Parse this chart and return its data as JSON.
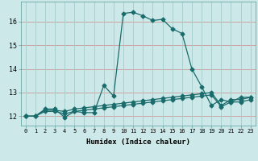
{
  "xlabel": "Humidex (Indice chaleur)",
  "ylabel": "",
  "bg_color": "#cce8e8",
  "grid_color": "#aacfcf",
  "red_line_color": "#cc9999",
  "line_color": "#1a6b6b",
  "x_ticks": [
    0,
    1,
    2,
    3,
    4,
    5,
    6,
    7,
    8,
    9,
    10,
    11,
    12,
    13,
    14,
    15,
    16,
    17,
    18,
    19,
    20,
    21,
    22,
    23
  ],
  "y_ticks": [
    12,
    13,
    14,
    15,
    16
  ],
  "xlim": [
    -0.5,
    23.5
  ],
  "ylim": [
    11.6,
    16.85
  ],
  "line1_x": [
    0,
    1,
    2,
    3,
    4,
    5,
    6,
    7,
    8,
    9,
    10,
    11,
    12,
    13,
    14,
    15,
    16,
    17,
    18,
    19,
    20,
    21,
    22,
    23
  ],
  "line1_y": [
    12.0,
    12.0,
    12.3,
    12.3,
    11.95,
    12.2,
    12.15,
    12.15,
    13.3,
    12.85,
    16.35,
    16.4,
    16.25,
    16.05,
    16.1,
    15.7,
    15.5,
    14.0,
    13.25,
    12.45,
    12.7,
    12.6,
    12.8,
    12.8
  ],
  "line2_x": [
    0,
    1,
    2,
    3,
    4,
    5,
    6,
    7,
    8,
    9,
    10,
    11,
    12,
    13,
    14,
    15,
    16,
    17,
    18,
    19,
    20,
    21,
    22,
    23
  ],
  "line2_y": [
    12.0,
    12.0,
    12.25,
    12.25,
    12.2,
    12.3,
    12.35,
    12.4,
    12.45,
    12.5,
    12.55,
    12.6,
    12.65,
    12.7,
    12.75,
    12.8,
    12.85,
    12.9,
    12.95,
    13.0,
    12.45,
    12.7,
    12.7,
    12.8
  ],
  "line3_x": [
    0,
    1,
    2,
    3,
    4,
    5,
    6,
    7,
    8,
    9,
    10,
    11,
    12,
    13,
    14,
    15,
    16,
    17,
    18,
    19,
    20,
    21,
    22,
    23
  ],
  "line3_y": [
    12.0,
    12.0,
    12.2,
    12.2,
    12.1,
    12.2,
    12.25,
    12.3,
    12.35,
    12.4,
    12.45,
    12.5,
    12.55,
    12.6,
    12.65,
    12.7,
    12.75,
    12.8,
    12.85,
    12.9,
    12.4,
    12.6,
    12.6,
    12.7
  ]
}
